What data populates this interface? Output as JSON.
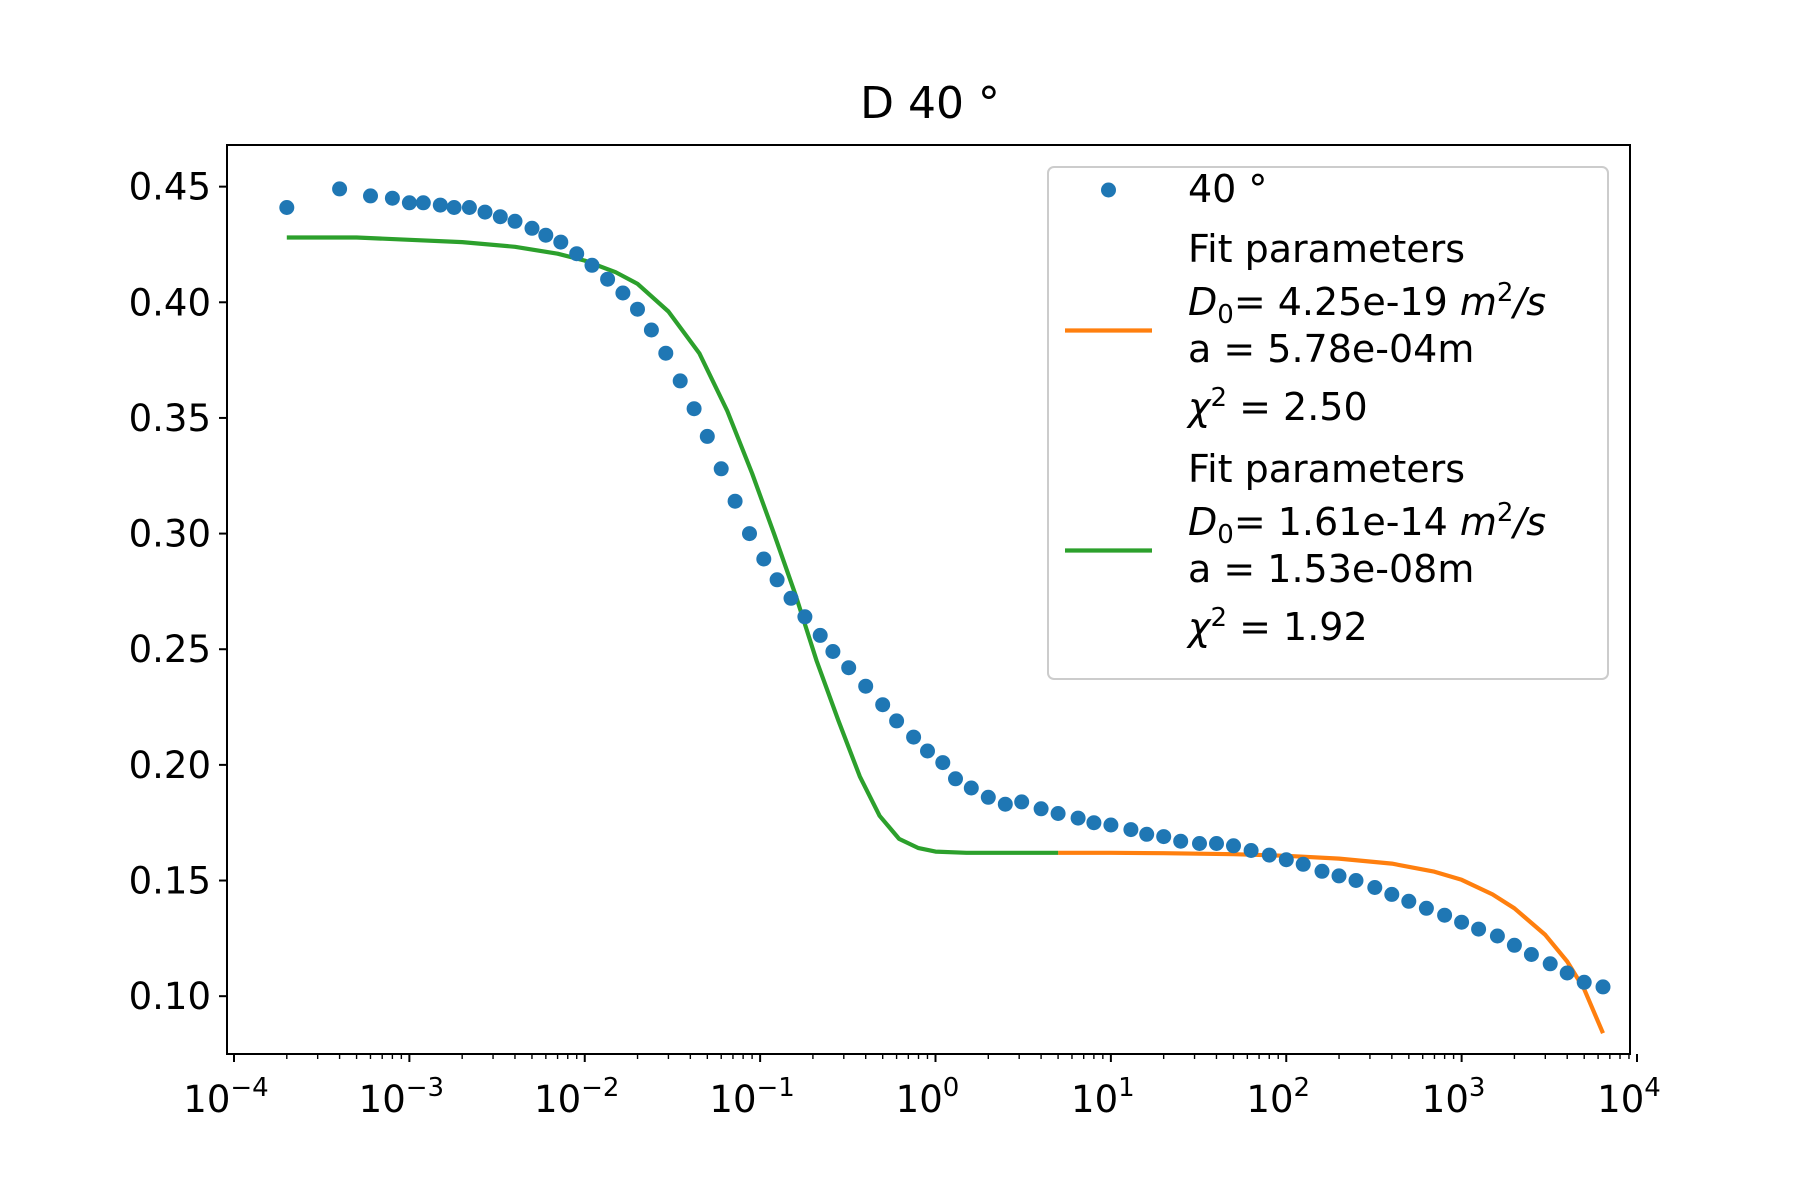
{
  "chart_data": {
    "type": "scatter",
    "title": "D 40 °",
    "xlabel": "",
    "ylabel": "",
    "x_scale": "log",
    "xlim": [
      0.0001,
      10000
    ],
    "ylim": [
      0.075,
      0.468
    ],
    "x_tick_labels": [
      {
        "value": 0.0001,
        "base": "10",
        "exp": "−4"
      },
      {
        "value": 0.001,
        "base": "10",
        "exp": "−3"
      },
      {
        "value": 0.01,
        "base": "10",
        "exp": "−2"
      },
      {
        "value": 0.1,
        "base": "10",
        "exp": "−1"
      },
      {
        "value": 1,
        "base": "10",
        "exp": "0"
      },
      {
        "value": 10,
        "base": "10",
        "exp": "1"
      },
      {
        "value": 100,
        "base": "10",
        "exp": "2"
      },
      {
        "value": 1000,
        "base": "10",
        "exp": "3"
      },
      {
        "value": 10000,
        "base": "10",
        "exp": "4"
      }
    ],
    "y_ticks": [
      0.1,
      0.15,
      0.2,
      0.25,
      0.3,
      0.35,
      0.4,
      0.45
    ],
    "y_tick_labels": [
      "0.10",
      "0.15",
      "0.20",
      "0.25",
      "0.30",
      "0.35",
      "0.40",
      "0.45"
    ],
    "grid": false,
    "legend_position": "top-right",
    "series": [
      {
        "name": "40 °",
        "kind": "scatter",
        "color": "#1f77b4",
        "points": [
          [
            0.0002,
            0.441
          ],
          [
            0.0004,
            0.449
          ],
          [
            0.0006,
            0.446
          ],
          [
            0.0008,
            0.445
          ],
          [
            0.001,
            0.443
          ],
          [
            0.0012,
            0.443
          ],
          [
            0.0015,
            0.442
          ],
          [
            0.0018,
            0.441
          ],
          [
            0.0022,
            0.441
          ],
          [
            0.0027,
            0.439
          ],
          [
            0.0033,
            0.437
          ],
          [
            0.004,
            0.435
          ],
          [
            0.005,
            0.432
          ],
          [
            0.006,
            0.429
          ],
          [
            0.0073,
            0.426
          ],
          [
            0.009,
            0.421
          ],
          [
            0.011,
            0.416
          ],
          [
            0.0135,
            0.41
          ],
          [
            0.0165,
            0.404
          ],
          [
            0.02,
            0.397
          ],
          [
            0.024,
            0.388
          ],
          [
            0.029,
            0.378
          ],
          [
            0.035,
            0.366
          ],
          [
            0.042,
            0.354
          ],
          [
            0.05,
            0.342
          ],
          [
            0.06,
            0.328
          ],
          [
            0.072,
            0.314
          ],
          [
            0.087,
            0.3
          ],
          [
            0.105,
            0.289
          ],
          [
            0.125,
            0.28
          ],
          [
            0.15,
            0.272
          ],
          [
            0.18,
            0.264
          ],
          [
            0.22,
            0.256
          ],
          [
            0.26,
            0.249
          ],
          [
            0.32,
            0.242
          ],
          [
            0.4,
            0.234
          ],
          [
            0.5,
            0.226
          ],
          [
            0.6,
            0.219
          ],
          [
            0.75,
            0.212
          ],
          [
            0.9,
            0.206
          ],
          [
            1.1,
            0.201
          ],
          [
            1.3,
            0.194
          ],
          [
            1.6,
            0.19
          ],
          [
            2.0,
            0.186
          ],
          [
            2.5,
            0.183
          ],
          [
            3.1,
            0.184
          ],
          [
            4.0,
            0.181
          ],
          [
            5.0,
            0.179
          ],
          [
            6.5,
            0.177
          ],
          [
            8.0,
            0.175
          ],
          [
            10,
            0.174
          ],
          [
            13,
            0.172
          ],
          [
            16,
            0.17
          ],
          [
            20,
            0.169
          ],
          [
            25,
            0.167
          ],
          [
            32,
            0.166
          ],
          [
            40,
            0.166
          ],
          [
            50,
            0.165
          ],
          [
            63,
            0.163
          ],
          [
            80,
            0.161
          ],
          [
            100,
            0.159
          ],
          [
            125,
            0.157
          ],
          [
            160,
            0.154
          ],
          [
            200,
            0.152
          ],
          [
            250,
            0.15
          ],
          [
            320,
            0.147
          ],
          [
            400,
            0.144
          ],
          [
            500,
            0.141
          ],
          [
            630,
            0.138
          ],
          [
            800,
            0.135
          ],
          [
            1000,
            0.132
          ],
          [
            1250,
            0.129
          ],
          [
            1600,
            0.126
          ],
          [
            2000,
            0.122
          ],
          [
            2500,
            0.118
          ],
          [
            3200,
            0.114
          ],
          [
            4000,
            0.11
          ],
          [
            5000,
            0.106
          ],
          [
            6400,
            0.104
          ]
        ]
      },
      {
        "name": "Fit parameters\n$D_0$= 4.25e-19 $m^2/s$\na = 5.78e-04m\n$\\chi^2$ = 2.50",
        "kind": "line",
        "color": "#ff7f0e",
        "points": [
          [
            5,
            0.162
          ],
          [
            10,
            0.162
          ],
          [
            20,
            0.1618
          ],
          [
            50,
            0.1614
          ],
          [
            100,
            0.1607
          ],
          [
            200,
            0.1595
          ],
          [
            400,
            0.1573
          ],
          [
            700,
            0.1538
          ],
          [
            1000,
            0.1503
          ],
          [
            1500,
            0.144
          ],
          [
            2000,
            0.138
          ],
          [
            3000,
            0.1265
          ],
          [
            4000,
            0.115
          ],
          [
            5000,
            0.103
          ],
          [
            6400,
            0.084
          ]
        ]
      },
      {
        "name": "Fit parameters\n$D_0$= 1.61e-14 $m^2/s$\na = 1.53e-08m\n$\\chi^2$ = 1.92",
        "kind": "line",
        "color": "#2ca02c",
        "points": [
          [
            0.0002,
            0.428
          ],
          [
            0.0005,
            0.428
          ],
          [
            0.001,
            0.427
          ],
          [
            0.002,
            0.426
          ],
          [
            0.004,
            0.424
          ],
          [
            0.007,
            0.421
          ],
          [
            0.01,
            0.418
          ],
          [
            0.015,
            0.413
          ],
          [
            0.02,
            0.408
          ],
          [
            0.03,
            0.396
          ],
          [
            0.045,
            0.378
          ],
          [
            0.065,
            0.353
          ],
          [
            0.09,
            0.326
          ],
          [
            0.12,
            0.3
          ],
          [
            0.16,
            0.273
          ],
          [
            0.21,
            0.245
          ],
          [
            0.28,
            0.219
          ],
          [
            0.37,
            0.195
          ],
          [
            0.48,
            0.178
          ],
          [
            0.62,
            0.168
          ],
          [
            0.8,
            0.164
          ],
          [
            1.0,
            0.1625
          ],
          [
            1.5,
            0.162
          ],
          [
            3,
            0.162
          ],
          [
            5,
            0.162
          ]
        ]
      }
    ],
    "legend": {
      "entries": [
        {
          "kind": "marker",
          "color": "#1f77b4",
          "lines": [
            {
              "text": "40 °"
            }
          ]
        },
        {
          "kind": "line",
          "color": "#ff7f0e",
          "lines": [
            {
              "text": "Fit parameters"
            },
            {
              "math": "D0",
              "text": "4.25e-19",
              "unit": "m2/s"
            },
            {
              "text": "a   = 5.78e-04m"
            },
            {
              "math": "chi2",
              "text": "= 2.50"
            }
          ]
        },
        {
          "kind": "line",
          "color": "#2ca02c",
          "lines": [
            {
              "text": "Fit parameters"
            },
            {
              "math": "D0",
              "text": "1.61e-14",
              "unit": "m2/s"
            },
            {
              "text": "a   = 1.53e-08m"
            },
            {
              "math": "chi2",
              "text": "= 1.92"
            }
          ]
        }
      ]
    }
  }
}
